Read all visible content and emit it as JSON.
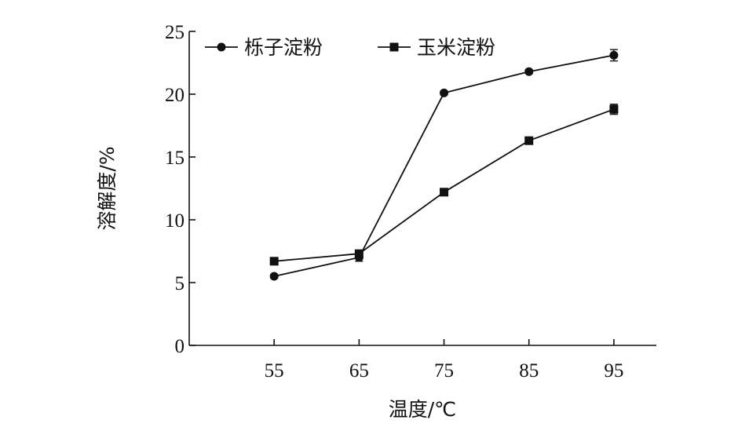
{
  "chart_data": {
    "type": "line",
    "xlabel": "温度/℃",
    "ylabel": "溶解度/%",
    "categories": [
      "55",
      "65",
      "75",
      "85",
      "95"
    ],
    "x": [
      55,
      65,
      75,
      85,
      95
    ],
    "xlim": [
      45,
      100
    ],
    "ylim": [
      0,
      25
    ],
    "yticks": [
      0,
      5,
      10,
      15,
      20,
      25
    ],
    "legend_position": "top-left",
    "grid": false,
    "series": [
      {
        "name": "栎子淀粉",
        "marker": "circle",
        "values": [
          5.5,
          7.0,
          20.1,
          21.8,
          23.1
        ],
        "errors": [
          0.15,
          0.3,
          0.15,
          0.15,
          0.45
        ]
      },
      {
        "name": "玉米淀粉",
        "marker": "square",
        "values": [
          6.7,
          7.3,
          12.2,
          16.3,
          18.8
        ],
        "errors": [
          0.15,
          0.2,
          0.15,
          0.2,
          0.4
        ]
      }
    ]
  }
}
